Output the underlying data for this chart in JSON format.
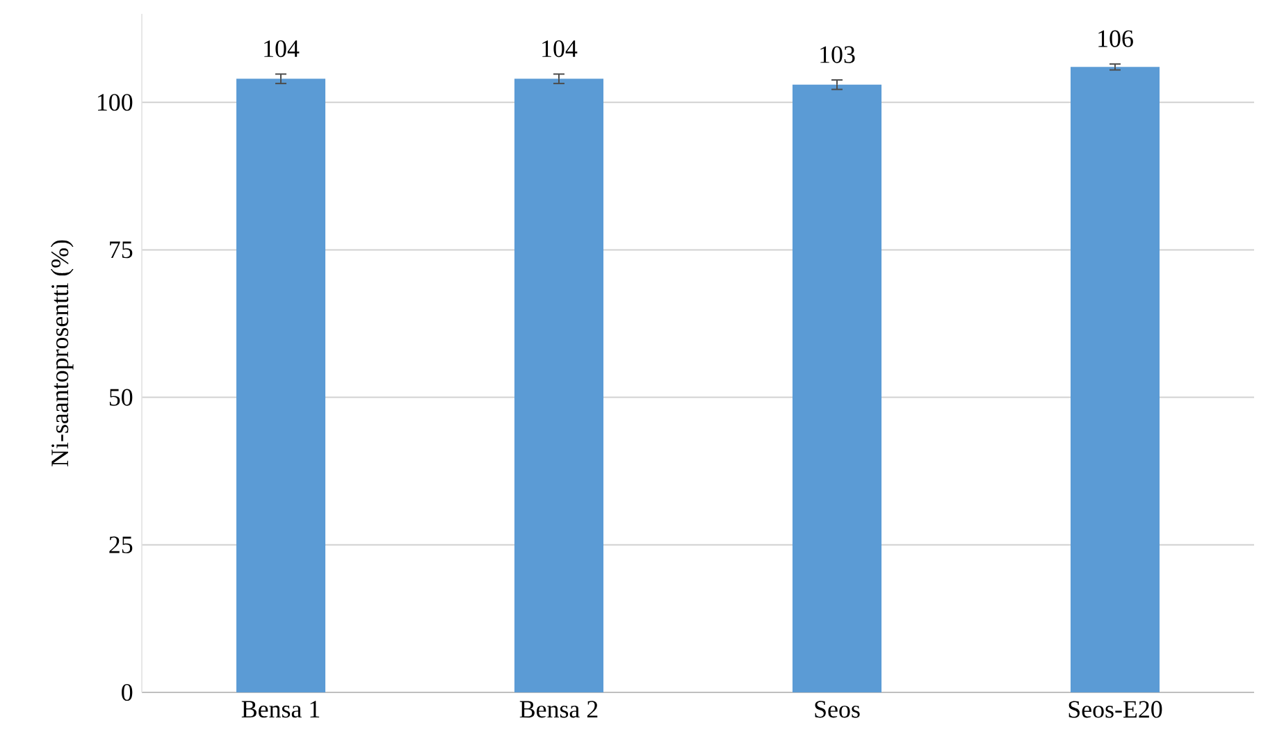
{
  "chart_data": {
    "type": "bar",
    "categories": [
      "Bensa 1",
      "Bensa 2",
      "Seos",
      "Seos-E20"
    ],
    "values": [
      104,
      104,
      103,
      106
    ],
    "errors": [
      0.8,
      0.8,
      0.8,
      0.5
    ],
    "color": "#5b9bd5",
    "data_labels": true,
    "ylabel": "Ni-saantoprosentti (%)",
    "ylim": [
      0,
      115
    ],
    "yticks": [
      0,
      25,
      50,
      75,
      100
    ],
    "grid": "y"
  }
}
